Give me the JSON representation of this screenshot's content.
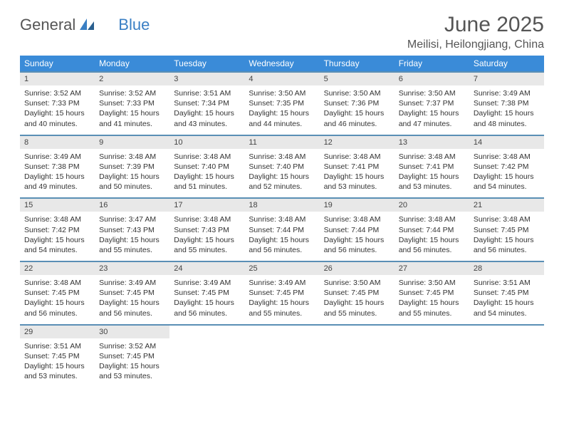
{
  "brand": {
    "name_gray": "General",
    "name_blue": "Blue"
  },
  "title": "June 2025",
  "location": "Meilisi, Heilongjiang, China",
  "colors": {
    "header_bg": "#3a8bd8",
    "header_text": "#ffffff",
    "daynum_bg": "#e8e8e8",
    "border": "#5a8fb5",
    "logo_gray": "#555555",
    "logo_blue": "#3a7fc4",
    "text": "#333333"
  },
  "day_names": [
    "Sunday",
    "Monday",
    "Tuesday",
    "Wednesday",
    "Thursday",
    "Friday",
    "Saturday"
  ],
  "weeks": [
    [
      {
        "n": "1",
        "sr": "3:52 AM",
        "ss": "7:33 PM",
        "dl": "15 hours and 40 minutes."
      },
      {
        "n": "2",
        "sr": "3:52 AM",
        "ss": "7:33 PM",
        "dl": "15 hours and 41 minutes."
      },
      {
        "n": "3",
        "sr": "3:51 AM",
        "ss": "7:34 PM",
        "dl": "15 hours and 43 minutes."
      },
      {
        "n": "4",
        "sr": "3:50 AM",
        "ss": "7:35 PM",
        "dl": "15 hours and 44 minutes."
      },
      {
        "n": "5",
        "sr": "3:50 AM",
        "ss": "7:36 PM",
        "dl": "15 hours and 46 minutes."
      },
      {
        "n": "6",
        "sr": "3:50 AM",
        "ss": "7:37 PM",
        "dl": "15 hours and 47 minutes."
      },
      {
        "n": "7",
        "sr": "3:49 AM",
        "ss": "7:38 PM",
        "dl": "15 hours and 48 minutes."
      }
    ],
    [
      {
        "n": "8",
        "sr": "3:49 AM",
        "ss": "7:38 PM",
        "dl": "15 hours and 49 minutes."
      },
      {
        "n": "9",
        "sr": "3:48 AM",
        "ss": "7:39 PM",
        "dl": "15 hours and 50 minutes."
      },
      {
        "n": "10",
        "sr": "3:48 AM",
        "ss": "7:40 PM",
        "dl": "15 hours and 51 minutes."
      },
      {
        "n": "11",
        "sr": "3:48 AM",
        "ss": "7:40 PM",
        "dl": "15 hours and 52 minutes."
      },
      {
        "n": "12",
        "sr": "3:48 AM",
        "ss": "7:41 PM",
        "dl": "15 hours and 53 minutes."
      },
      {
        "n": "13",
        "sr": "3:48 AM",
        "ss": "7:41 PM",
        "dl": "15 hours and 53 minutes."
      },
      {
        "n": "14",
        "sr": "3:48 AM",
        "ss": "7:42 PM",
        "dl": "15 hours and 54 minutes."
      }
    ],
    [
      {
        "n": "15",
        "sr": "3:48 AM",
        "ss": "7:42 PM",
        "dl": "15 hours and 54 minutes."
      },
      {
        "n": "16",
        "sr": "3:47 AM",
        "ss": "7:43 PM",
        "dl": "15 hours and 55 minutes."
      },
      {
        "n": "17",
        "sr": "3:48 AM",
        "ss": "7:43 PM",
        "dl": "15 hours and 55 minutes."
      },
      {
        "n": "18",
        "sr": "3:48 AM",
        "ss": "7:44 PM",
        "dl": "15 hours and 56 minutes."
      },
      {
        "n": "19",
        "sr": "3:48 AM",
        "ss": "7:44 PM",
        "dl": "15 hours and 56 minutes."
      },
      {
        "n": "20",
        "sr": "3:48 AM",
        "ss": "7:44 PM",
        "dl": "15 hours and 56 minutes."
      },
      {
        "n": "21",
        "sr": "3:48 AM",
        "ss": "7:45 PM",
        "dl": "15 hours and 56 minutes."
      }
    ],
    [
      {
        "n": "22",
        "sr": "3:48 AM",
        "ss": "7:45 PM",
        "dl": "15 hours and 56 minutes."
      },
      {
        "n": "23",
        "sr": "3:49 AM",
        "ss": "7:45 PM",
        "dl": "15 hours and 56 minutes."
      },
      {
        "n": "24",
        "sr": "3:49 AM",
        "ss": "7:45 PM",
        "dl": "15 hours and 56 minutes."
      },
      {
        "n": "25",
        "sr": "3:49 AM",
        "ss": "7:45 PM",
        "dl": "15 hours and 55 minutes."
      },
      {
        "n": "26",
        "sr": "3:50 AM",
        "ss": "7:45 PM",
        "dl": "15 hours and 55 minutes."
      },
      {
        "n": "27",
        "sr": "3:50 AM",
        "ss": "7:45 PM",
        "dl": "15 hours and 55 minutes."
      },
      {
        "n": "28",
        "sr": "3:51 AM",
        "ss": "7:45 PM",
        "dl": "15 hours and 54 minutes."
      }
    ],
    [
      {
        "n": "29",
        "sr": "3:51 AM",
        "ss": "7:45 PM",
        "dl": "15 hours and 53 minutes."
      },
      {
        "n": "30",
        "sr": "3:52 AM",
        "ss": "7:45 PM",
        "dl": "15 hours and 53 minutes."
      },
      null,
      null,
      null,
      null,
      null
    ]
  ],
  "labels": {
    "sunrise": "Sunrise: ",
    "sunset": "Sunset: ",
    "daylight": "Daylight: "
  }
}
